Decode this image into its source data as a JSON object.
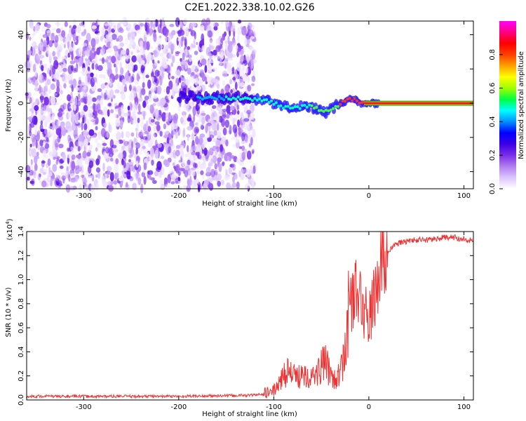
{
  "title": "C2E1.2022.338.10.02.G26",
  "chart_data": [
    {
      "type": "heatmap",
      "xlabel": "Height of straight line (km)",
      "ylabel": "Frequency (Hz)",
      "xlim": [
        -360,
        110
      ],
      "ylim": [
        -50,
        48
      ],
      "x_ticks": [
        -300,
        -200,
        -100,
        0,
        100
      ],
      "y_ticks": [
        -40,
        -20,
        0,
        20,
        40
      ],
      "colorbar": {
        "label": "Normalized spectral amplitude",
        "range": [
          0,
          1
        ],
        "ticks": [
          "0.0",
          "0.2",
          "0.4",
          "0.6",
          "0.8"
        ],
        "colors": [
          "#ffffff",
          "#dcc4ff",
          "#b27cf0",
          "#7a2ee8",
          "#3b00e6",
          "#0000ff",
          "#0090ff",
          "#00ffff",
          "#00ff40",
          "#a0ff00",
          "#ffff00",
          "#ffa000",
          "#ff4000",
          "#ff0000",
          "#ff0080",
          "#ff00ff"
        ]
      },
      "ridge": {
        "x": [
          -200,
          -180,
          -160,
          -140,
          -120,
          -110,
          -100,
          -90,
          -80,
          -70,
          -60,
          -50,
          -45,
          -40,
          -35,
          -30,
          -25,
          -20,
          -15,
          -10,
          -5,
          0,
          10,
          110
        ],
        "y": [
          4,
          3,
          3,
          3,
          2,
          2,
          0,
          -2,
          -3,
          -2,
          -2,
          -4,
          -5,
          -4,
          -2,
          0,
          1,
          2,
          2,
          0,
          0,
          0,
          0,
          0
        ]
      },
      "noise_cutoff_km": -120
    },
    {
      "type": "line",
      "xlabel": "Height of straight line (km)",
      "ylabel": "SNR (10 * v/v)",
      "y_multiplier": "(x10",
      "y_multiplier_exp": "4",
      "xlim": [
        -360,
        110
      ],
      "ylim": [
        0,
        1.4
      ],
      "x_ticks": [
        -300,
        -200,
        -100,
        0,
        100
      ],
      "y_ticks": [
        "0.0",
        "0.2",
        "0.4",
        "0.6",
        "0.8",
        "1.0",
        "1.2",
        "1.4"
      ],
      "series": [
        {
          "color": "#ee3030",
          "x": [
            -360,
            -300,
            -250,
            -200,
            -150,
            -120,
            -110,
            -100,
            -95,
            -90,
            -85,
            -80,
            -75,
            -70,
            -65,
            -60,
            -55,
            -50,
            -45,
            -40,
            -35,
            -30,
            -25,
            -20,
            -15,
            -10,
            -5,
            0,
            5,
            10,
            15,
            20,
            30,
            40,
            50,
            60,
            70,
            80,
            90,
            100,
            110
          ],
          "y": [
            0.03,
            0.03,
            0.03,
            0.03,
            0.035,
            0.04,
            0.05,
            0.08,
            0.12,
            0.2,
            0.25,
            0.2,
            0.18,
            0.25,
            0.22,
            0.18,
            0.22,
            0.28,
            0.3,
            0.22,
            0.18,
            0.2,
            0.45,
            0.8,
            0.9,
            0.85,
            0.75,
            0.65,
            0.82,
            1.02,
            1.15,
            1.24,
            1.3,
            1.32,
            1.33,
            1.33,
            1.34,
            1.35,
            1.35,
            1.34,
            1.32
          ]
        }
      ]
    }
  ]
}
